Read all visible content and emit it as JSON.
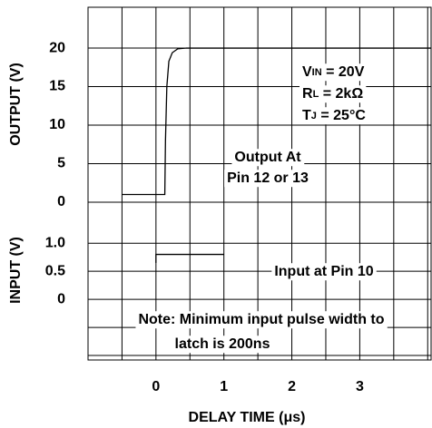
{
  "chart_data": [
    {
      "type": "line",
      "panel": "output",
      "ylabel": "OUTPUT (V)",
      "ylim": [
        0,
        25.3
      ],
      "yticks": [
        0,
        5,
        10,
        15,
        20
      ],
      "xlim": [
        -1,
        4.05
      ],
      "xticks": [
        0,
        1,
        2,
        3
      ],
      "xlabel": "DELAY TIME (μs)",
      "series": [
        {
          "color": "#000000",
          "x": [
            -0.5,
            0.13,
            0.14,
            0.16,
            0.19,
            0.24,
            0.32,
            0.45,
            4.05
          ],
          "values": [
            1,
            1,
            8,
            15,
            18.3,
            19.4,
            19.9,
            20,
            20
          ]
        }
      ],
      "conditions": [
        {
          "symbol": "V",
          "sub": "IN",
          "text": " = 20V"
        },
        {
          "symbol": "R",
          "sub": "L",
          "text": " = 2kΩ"
        },
        {
          "symbol": "T",
          "sub": "J",
          "text": " = 25°C"
        }
      ],
      "annotation": [
        "Output At",
        "Pin 12 or 13"
      ]
    },
    {
      "type": "line",
      "panel": "input",
      "ylabel": "INPUT (V)",
      "ylim": [
        -1.08,
        1.73
      ],
      "yticks": [
        0,
        0.5,
        {
          "value": 1,
          "label": "1.0"
        }
      ],
      "xlim": [
        -1,
        4.05
      ],
      "series": [
        {
          "color": "#000000",
          "x": [
            0,
            0,
            1
          ],
          "values": [
            0.65,
            0.8,
            0.8
          ]
        }
      ],
      "annotation": [
        "Input at Pin 10"
      ],
      "note": [
        "Note: Minimum input pulse width to",
        "latch is 200ns"
      ]
    }
  ]
}
